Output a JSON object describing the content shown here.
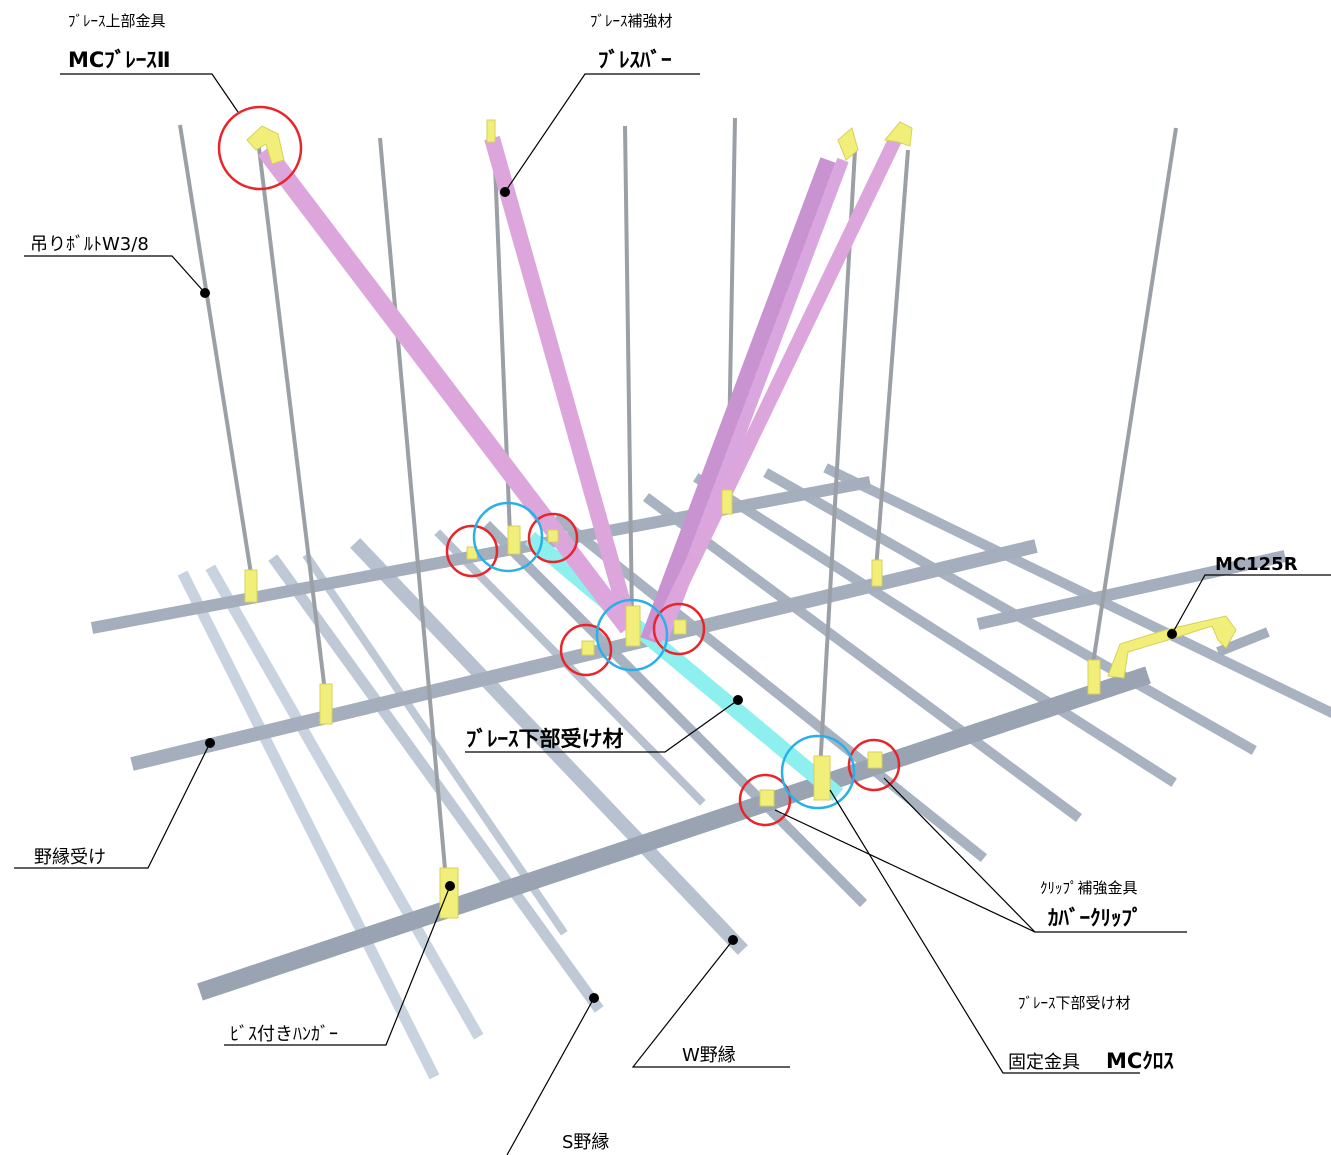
{
  "labels": {
    "brace_top_sub": "ﾌﾞﾚｰｽ上部金具",
    "brace_top_main": "MCﾌﾞﾚｰｽⅡ",
    "brace_reinforce_sub": "ﾌﾞﾚｰｽ補強材",
    "brace_reinforce_main": "ﾌﾞﾚｽﾊﾞｰ",
    "hanging_bolt": "吊りﾎﾞﾙﾄW3/8",
    "mc125r": "MC125R",
    "brace_lower_member": "ﾌﾞﾚｰｽ下部受け材",
    "noen_uke": "野縁受け",
    "clip_sub": "ｸﾘｯﾌﾟ補強金具",
    "clip_main": "ｶﾊﾞｰｸﾘｯﾌﾟ",
    "lower_fix_sub": "ﾌﾞﾚｰｽ下部受け材",
    "lower_fix_prefix": "固定金具",
    "lower_fix_main": "MCｸﾛｽ",
    "screw_hanger": "ﾋﾞｽ付きﾊﾝｶﾞｰ",
    "w_noen": "W野縁",
    "s_noen": "S野縁"
  },
  "colors": {
    "channel": "#a4aebd",
    "channel_dark": "#8c96a6",
    "furring": "#c9d3e0",
    "brace": "#dca6dc",
    "brace_dark": "#c893d0",
    "lower_member": "#8ef0ee",
    "fitting": "#f2ee7a",
    "rod": "#9aa0a6",
    "red_circle": "#e8252b",
    "blue_circle": "#2ab0e8",
    "leader": "#000000"
  }
}
